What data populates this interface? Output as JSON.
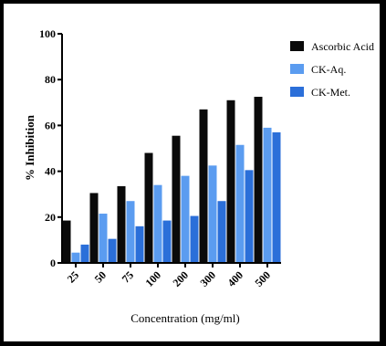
{
  "chart_data": {
    "type": "bar",
    "categories": [
      "25",
      "50",
      "75",
      "100",
      "200",
      "300",
      "400",
      "500"
    ],
    "series": [
      {
        "name": "Ascorbic Acid",
        "color": "#0a0a0a",
        "values": [
          18.5,
          30.5,
          33.5,
          48,
          55.5,
          67,
          71,
          72.5
        ]
      },
      {
        "name": "CK-Aq.",
        "color": "#5b9cf0",
        "values": [
          4.5,
          21.5,
          27,
          34,
          38,
          42.5,
          51.5,
          59
        ]
      },
      {
        "name": "CK-Met.",
        "color": "#2b6fd9",
        "values": [
          8,
          10.5,
          16,
          18.5,
          20.5,
          27,
          40.5,
          57
        ]
      }
    ],
    "title": "",
    "xlabel": "Concentration (mg/ml)",
    "ylabel": "% Inhibition",
    "ylim": [
      0,
      100
    ],
    "yticks": [
      "0",
      "20",
      "40",
      "60",
      "80",
      "100"
    ],
    "grid": false,
    "legend": "top-right"
  }
}
